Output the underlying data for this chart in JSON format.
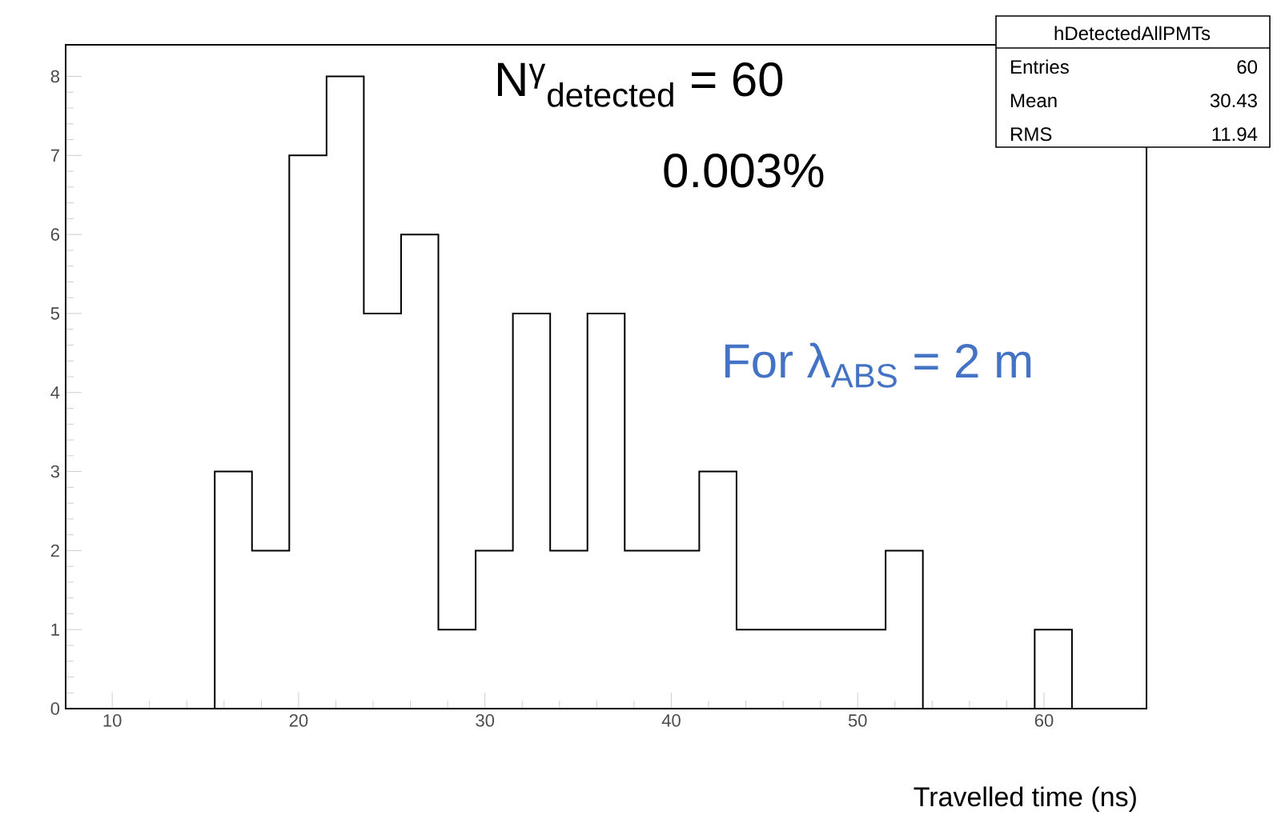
{
  "chart_data": {
    "type": "histogram",
    "xlabel": "Travelled time (ns)",
    "bins": [
      7.5,
      9.5,
      11.5,
      13.5,
      15.5,
      17.5,
      19.5,
      21.5,
      23.5,
      25.5,
      27.5,
      29.5,
      31.5,
      33.5,
      35.5,
      37.5,
      39.5,
      41.5,
      43.5,
      45.5,
      47.5,
      49.5,
      51.5,
      53.5,
      55.5,
      57.5,
      59.5,
      61.5,
      63.5,
      65.5
    ],
    "values": [
      0,
      0,
      0,
      0,
      3,
      2,
      7,
      8,
      5,
      6,
      1,
      2,
      5,
      2,
      5,
      2,
      2,
      3,
      1,
      1,
      1,
      1,
      2,
      0,
      0,
      0,
      1,
      0,
      0
    ],
    "color": "#000000",
    "xlim": [
      7.5,
      65.5
    ],
    "ylim": [
      0,
      8.4
    ],
    "xticks": [
      10,
      20,
      30,
      40,
      50,
      60
    ],
    "yticks": [
      0,
      1,
      2,
      3,
      4,
      5,
      6,
      7,
      8
    ],
    "grid": false,
    "annotations": [
      "N$^{γ}$$_{detected}$ = 60",
      "0.003%",
      "For λ$_{ABS}$ = 2 m",
      "hDetectedAllPMTs",
      "Entries",
      "60",
      "Mean",
      "30.43",
      "RMS",
      "11.94"
    ]
  }
}
